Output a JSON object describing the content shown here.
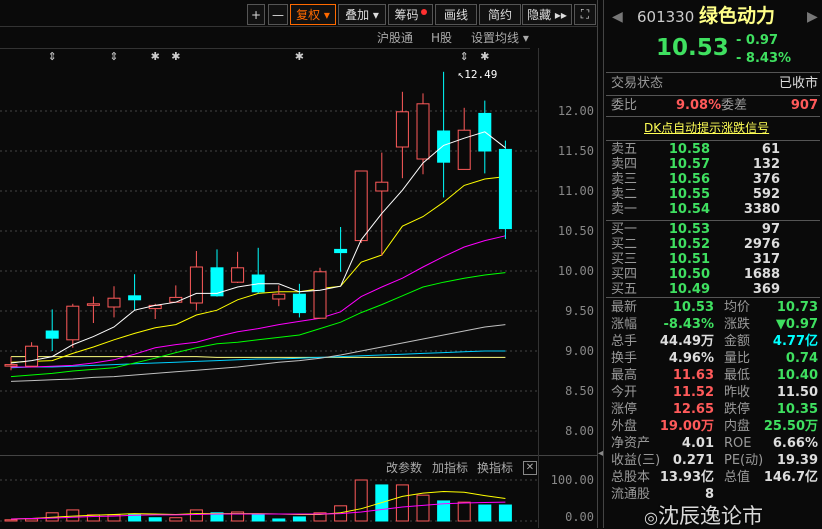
{
  "toolbar": {
    "buttons": [
      {
        "label": "+"
      },
      {
        "label": "—"
      },
      {
        "label": "复权 ▾"
      },
      {
        "label": "叠加 ▾"
      },
      {
        "label": "筹码"
      },
      {
        "label": "画线"
      },
      {
        "label": "简约"
      },
      {
        "label": "隐藏 ▸▸"
      },
      {
        "label": "⛶"
      }
    ],
    "active": "复权",
    "chip_dot_color": "#ff3030"
  },
  "subbar": {
    "hsgt": "沪股通",
    "hshare": "H股",
    "ma_setting": "设置均线 ▾"
  },
  "volume_panel": {
    "edit": "改参数",
    "add": "加指标",
    "switch": "换指标",
    "close": "✕",
    "axis": [
      "100.00",
      "0.00"
    ]
  },
  "colors": {
    "up": "#ff5a5a",
    "down": "#00ffff",
    "ma5": "#ffffff",
    "ma10": "#ffff00",
    "ma20": "#ff00ff",
    "ma30": "#00ff00",
    "ma60": "#c0c0c0",
    "ma120": "#00d0ff",
    "ma250": "#ffff80"
  },
  "chart_data": {
    "type": "candlestick",
    "ylim": [
      8.0,
      12.5
    ],
    "yticks": [
      "12.00",
      "11.50",
      "11.00",
      "10.50",
      "10.00",
      "9.50",
      "9.00",
      "8.50",
      "8.00"
    ],
    "high_annotation": "12.49",
    "markers": [
      {
        "i": 2,
        "glyph": "⇕"
      },
      {
        "i": 5,
        "glyph": "⇕"
      },
      {
        "i": 7,
        "glyph": "✱"
      },
      {
        "i": 8,
        "glyph": "✱"
      },
      {
        "i": 14,
        "glyph": "✱"
      },
      {
        "i": 22,
        "glyph": "⇕"
      },
      {
        "i": 23,
        "glyph": "✱"
      }
    ],
    "ohlc": [
      [
        8.82,
        8.93,
        8.76,
        8.83
      ],
      [
        8.81,
        9.11,
        8.8,
        9.06
      ],
      [
        9.25,
        9.52,
        9.0,
        9.16
      ],
      [
        9.14,
        9.59,
        9.04,
        9.56
      ],
      [
        9.59,
        9.68,
        9.35,
        9.59
      ],
      [
        9.55,
        9.81,
        9.42,
        9.66
      ],
      [
        9.69,
        9.96,
        9.51,
        9.64
      ],
      [
        9.53,
        9.59,
        9.4,
        9.57
      ],
      [
        9.61,
        9.82,
        9.61,
        9.67
      ],
      [
        9.6,
        10.25,
        9.51,
        10.05
      ],
      [
        10.04,
        10.27,
        9.68,
        9.69
      ],
      [
        9.86,
        10.24,
        9.85,
        10.04
      ],
      [
        9.95,
        10.29,
        9.72,
        9.74
      ],
      [
        9.65,
        9.82,
        9.56,
        9.71
      ],
      [
        9.71,
        9.84,
        9.42,
        9.48
      ],
      [
        9.41,
        10.04,
        9.41,
        9.99
      ],
      [
        10.27,
        10.55,
        9.99,
        10.23
      ],
      [
        10.38,
        11.25,
        10.35,
        11.25
      ],
      [
        11.0,
        11.48,
        10.19,
        11.11
      ],
      [
        11.55,
        12.24,
        11.16,
        11.99
      ],
      [
        11.4,
        12.22,
        11.21,
        12.09
      ],
      [
        11.75,
        12.49,
        10.92,
        11.36
      ],
      [
        11.27,
        12.04,
        11.27,
        11.76
      ],
      [
        11.97,
        12.13,
        11.22,
        11.5
      ],
      [
        11.52,
        11.63,
        10.4,
        10.53
      ]
    ],
    "ma5": [
      8.85,
      8.88,
      8.93,
      9.08,
      9.18,
      9.3,
      9.51,
      9.57,
      9.61,
      9.72,
      9.72,
      9.8,
      9.84,
      9.84,
      9.74,
      9.76,
      9.81,
      10.39,
      10.72,
      11.01,
      11.35,
      11.57,
      11.66,
      11.74,
      11.54
    ],
    "ma10": [
      8.86,
      8.87,
      8.88,
      8.97,
      9.05,
      9.14,
      9.22,
      9.29,
      9.33,
      9.45,
      9.51,
      9.64,
      9.72,
      9.74,
      9.74,
      9.78,
      9.81,
      10.11,
      10.2,
      10.56,
      10.68,
      10.86,
      11.07,
      11.15,
      11.18
    ],
    "ma20": [
      8.8,
      8.8,
      8.81,
      8.82,
      8.85,
      8.89,
      8.96,
      9.04,
      9.08,
      9.11,
      9.18,
      9.24,
      9.28,
      9.33,
      9.37,
      9.41,
      9.49,
      9.68,
      9.8,
      9.91,
      10.05,
      10.18,
      10.3,
      10.38,
      10.44
    ],
    "ma30": [
      8.68,
      8.7,
      8.72,
      8.75,
      8.77,
      8.79,
      8.85,
      8.91,
      8.98,
      9.04,
      9.09,
      9.11,
      9.14,
      9.17,
      9.2,
      9.28,
      9.36,
      9.48,
      9.58,
      9.69,
      9.8,
      9.86,
      9.91,
      9.95,
      9.98
    ],
    "ma60": [
      8.62,
      8.63,
      8.64,
      8.65,
      8.67,
      8.68,
      8.7,
      8.72,
      8.74,
      8.76,
      8.78,
      8.8,
      8.83,
      8.86,
      8.88,
      8.91,
      8.95,
      9.0,
      9.05,
      9.1,
      9.15,
      9.2,
      9.25,
      9.3,
      9.33
    ],
    "ma120": [
      8.79,
      8.8,
      8.8,
      8.81,
      8.82,
      8.83,
      8.84,
      8.85,
      8.86,
      8.87,
      8.88,
      8.89,
      8.9,
      8.9,
      8.91,
      8.92,
      8.93,
      8.94,
      8.95,
      8.96,
      8.97,
      8.98,
      8.99,
      9.0,
      9.0
    ],
    "ma250": [
      8.93,
      8.93,
      8.93,
      8.93,
      8.93,
      8.93,
      8.93,
      8.93,
      8.93,
      8.93,
      8.92,
      8.92,
      8.92,
      8.92,
      8.92,
      8.92,
      8.92,
      8.92,
      8.92,
      8.92,
      8.92,
      8.92,
      8.92,
      8.92,
      8.92
    ],
    "volume": [
      3,
      5,
      20,
      27,
      15,
      15,
      17,
      8,
      8,
      27,
      20,
      22,
      17,
      5,
      10,
      20,
      37,
      100,
      88,
      88,
      63,
      49,
      46,
      39,
      39
    ],
    "volume_up": [
      true,
      true,
      true,
      true,
      true,
      true,
      false,
      false,
      true,
      true,
      false,
      true,
      false,
      false,
      false,
      true,
      true,
      true,
      false,
      true,
      true,
      false,
      true,
      false,
      false
    ],
    "vol_ma1": [
      5,
      6,
      9,
      12,
      14,
      16,
      18,
      17,
      16,
      18,
      18,
      18,
      18,
      17,
      16,
      16,
      20,
      30,
      45,
      60,
      68,
      72,
      70,
      62,
      55
    ],
    "vol_ma2": [
      5,
      6,
      7,
      9,
      11,
      12,
      14,
      15,
      15,
      16,
      17,
      17,
      17,
      17,
      17,
      17,
      18,
      22,
      28,
      34,
      38,
      42,
      44,
      45,
      46
    ]
  },
  "quote": {
    "code": "601330",
    "name": "绿色动力",
    "price": "10.53",
    "change": "- 0.97",
    "pct": "- 8.43%",
    "status_label": "交易状态",
    "status": "已收市",
    "wb_label": "委比",
    "wb": "9.08%",
    "wc_label": "委差",
    "wc": "907",
    "signal_link": "DK点自动提示涨跌信号",
    "asks": [
      {
        "label": "卖五",
        "price": "10.58",
        "vol": "61"
      },
      {
        "label": "卖四",
        "price": "10.57",
        "vol": "132"
      },
      {
        "label": "卖三",
        "price": "10.56",
        "vol": "376"
      },
      {
        "label": "卖二",
        "price": "10.55",
        "vol": "592"
      },
      {
        "label": "卖一",
        "price": "10.54",
        "vol": "3380"
      }
    ],
    "bids": [
      {
        "label": "买一",
        "price": "10.53",
        "vol": "97"
      },
      {
        "label": "买二",
        "price": "10.52",
        "vol": "2976"
      },
      {
        "label": "买三",
        "price": "10.51",
        "vol": "317"
      },
      {
        "label": "买四",
        "price": "10.50",
        "vol": "1688"
      },
      {
        "label": "买五",
        "price": "10.49",
        "vol": "369"
      }
    ],
    "stats": [
      {
        "l1": "最新",
        "v1": "10.53",
        "c1": "grn",
        "l2": "均价",
        "v2": "10.73",
        "c2": "grn"
      },
      {
        "l1": "涨幅",
        "v1": "-8.43%",
        "c1": "grn",
        "l2": "涨跌",
        "v2": "▼0.97",
        "c2": "grn"
      },
      {
        "l1": "总手",
        "v1": "44.49万",
        "c1": "wht",
        "l2": "金额",
        "v2": "4.77亿",
        "c2": "cy"
      },
      {
        "l1": "换手",
        "v1": "4.96%",
        "c1": "wht",
        "l2": "量比",
        "v2": "0.74",
        "c2": "grn"
      },
      {
        "l1": "最高",
        "v1": "11.63",
        "c1": "red",
        "l2": "最低",
        "v2": "10.40",
        "c2": "grn"
      },
      {
        "l1": "今开",
        "v1": "11.52",
        "c1": "red",
        "l2": "昨收",
        "v2": "11.50",
        "c2": "wht"
      },
      {
        "l1": "涨停",
        "v1": "12.65",
        "c1": "red",
        "l2": "跌停",
        "v2": "10.35",
        "c2": "grn"
      },
      {
        "l1": "外盘",
        "v1": "19.00万",
        "c1": "red",
        "l2": "内盘",
        "v2": "25.50万",
        "c2": "grn"
      },
      {
        "l1": "净资产",
        "v1": "4.01",
        "c1": "wht",
        "l2": "ROE",
        "v2": "6.66%",
        "c2": "wht"
      },
      {
        "l1": "收益(三)",
        "v1": "0.271",
        "c1": "wht",
        "l2": "PE(动)",
        "v2": "19.39",
        "c2": "wht"
      },
      {
        "l1": "总股本",
        "v1": "13.93亿",
        "c1": "wht",
        "l2": "总值",
        "v2": "146.7亿",
        "c2": "wht"
      },
      {
        "l1": "流通股",
        "v1": "8",
        "c1": "wht",
        "l2": "",
        "v2": "",
        "c2": "wht"
      }
    ]
  },
  "watermark": "沈辰逸论市"
}
